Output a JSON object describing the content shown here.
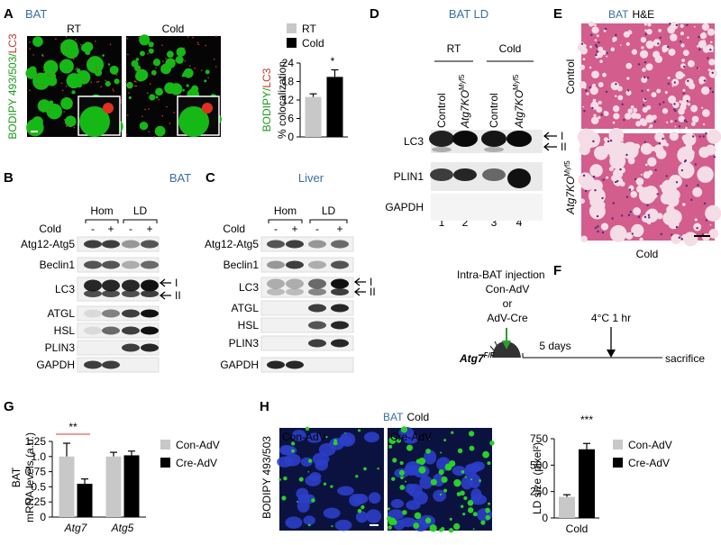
{
  "panels": {
    "A": {
      "label": "A",
      "title": "BAT",
      "images": [
        "RT",
        "Cold"
      ],
      "ylabel_parts": [
        "BODIPY 493/503/",
        "LC3"
      ],
      "chart": {
        "type": "bar",
        "categories": [
          null
        ],
        "series": [
          {
            "name": "RT",
            "color": "#c8c8c8",
            "values": [
              13
            ],
            "errors": [
              1
            ]
          },
          {
            "name": "Cold",
            "color": "#000000",
            "values": [
              19.5
            ],
            "errors": [
              2.3
            ]
          }
        ],
        "ylim": [
          0,
          24
        ],
        "yticks": [
          0,
          6,
          12,
          18,
          24
        ],
        "ylabel_parts": [
          "BODIPY/",
          "LC3"
        ],
        "ylabel2": "% colocalization",
        "significance": "*"
      }
    },
    "B": {
      "label": "B",
      "title": "BAT",
      "groups": [
        "Hom",
        "LD"
      ],
      "condition": "Cold",
      "signs": [
        "-",
        "+",
        "-",
        "+"
      ],
      "rows": [
        "Atg12-Atg5",
        "Beclin1",
        "LC3",
        "ATGL",
        "HSL",
        "PLIN3",
        "GAPDH"
      ],
      "arrows": [
        "I",
        "II"
      ]
    },
    "C": {
      "label": "C",
      "title": "Liver",
      "groups": [
        "Hom",
        "LD"
      ],
      "condition": "Cold",
      "signs": [
        "-",
        "+",
        "-",
        "+"
      ],
      "rows": [
        "Atg12-Atg5",
        "Beclin1",
        "LC3",
        "ATGL",
        "HSL",
        "PLIN3",
        "GAPDH"
      ],
      "arrows": [
        "I",
        "II"
      ]
    },
    "D": {
      "label": "D",
      "title": "BAT LD",
      "groups": [
        "RT",
        "Cold"
      ],
      "lanes": [
        {
          "text": "Control"
        },
        {
          "text": "Atg7KO",
          "sup": "Myf5"
        },
        {
          "text": "Control"
        },
        {
          "text": "Atg7KO",
          "sup": "Myf5"
        }
      ],
      "rows": [
        "LC3",
        "PLIN1",
        "GAPDH"
      ],
      "arrows": [
        "I",
        "II"
      ],
      "lane_numbers": [
        1,
        2,
        3,
        4
      ]
    },
    "E": {
      "label": "E",
      "title_parts": [
        "BAT",
        "H&E"
      ],
      "rows": [
        {
          "text": "Control"
        },
        {
          "text": "Atg7KO",
          "sup": "Myf5"
        }
      ],
      "xlabel": "Cold"
    },
    "F": {
      "label": "F",
      "injection": [
        "Intra-BAT injection",
        "Con-AdV",
        "or",
        "AdV-Cre"
      ],
      "temp": "4°C 1 hr",
      "genotype": {
        "text": "Atg7",
        "sup": "F/F"
      },
      "interval": "5 days",
      "end": "sacrifice"
    },
    "G": {
      "label": "G",
      "chart": {
        "type": "bar",
        "categories": [
          "Atg7",
          "Atg5"
        ],
        "series": [
          {
            "name": "Con-AdV",
            "color": "#c8c8c8",
            "values": [
              1.0,
              1.0
            ],
            "errors": [
              0.22,
              0.07
            ]
          },
          {
            "name": "Cre-AdV",
            "color": "#000000",
            "values": [
              0.55,
              1.02
            ],
            "errors": [
              0.08,
              0.07
            ]
          }
        ],
        "ylim": [
          0,
          1.25
        ],
        "yticks": [
          0,
          0.25,
          0.5,
          0.75,
          {
            "value": 1,
            "label": "1.0"
          },
          1.25
        ],
        "ylabel": [
          "BAT",
          "mRNA levels (a.u.)"
        ],
        "significance": "**"
      }
    },
    "H": {
      "label": "H",
      "title_parts": [
        "BAT",
        "Cold"
      ],
      "ylabel": "BODIPY 493/503",
      "images": [
        "Con-AdV",
        "Cre-AdV"
      ],
      "chart": {
        "type": "bar",
        "categories": [
          "Cold"
        ],
        "series": [
          {
            "name": "Con-AdV",
            "color": "#c8c8c8",
            "values": [
              200
            ],
            "errors": [
              20
            ]
          },
          {
            "name": "Cre-AdV",
            "color": "#000000",
            "values": [
              650
            ],
            "errors": [
              55
            ]
          }
        ],
        "ylim": [
          0,
          750
        ],
        "yticks": [
          0,
          250,
          500,
          750
        ],
        "ylabel": "LD size (pixel²)",
        "significance": "***"
      }
    }
  }
}
